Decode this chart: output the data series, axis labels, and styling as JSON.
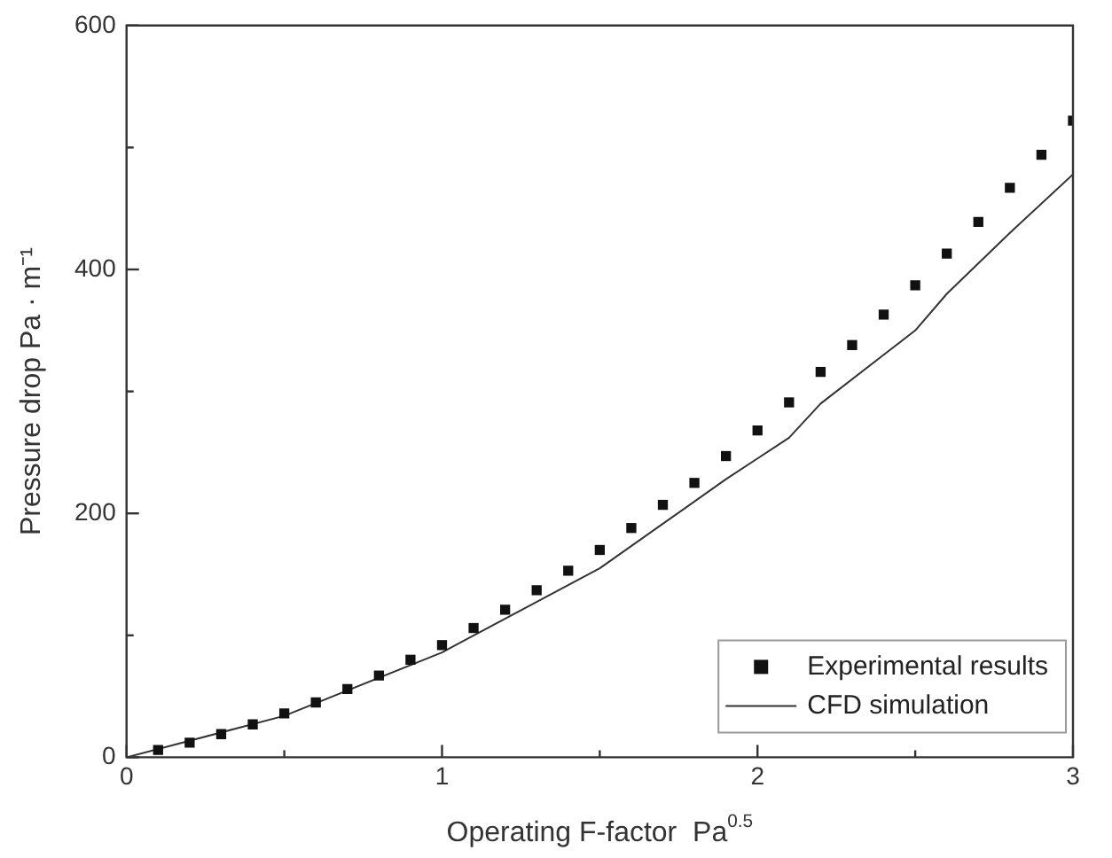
{
  "chart_data": {
    "type": "scatter",
    "xlabel": "Operating F-factor  Pa$^{0.5}$",
    "ylabel": "Pressure drop Pa · m⁻¹",
    "xlim": [
      0,
      3
    ],
    "ylim": [
      0,
      600
    ],
    "xticks": [
      0,
      {
        "value": 0.5,
        "label": null
      },
      1,
      {
        "value": 1.5,
        "label": null
      },
      2,
      {
        "value": 2.5,
        "label": null
      },
      3
    ],
    "yticks": [
      0,
      {
        "value": 100,
        "label": null
      },
      200,
      {
        "value": 300,
        "label": null
      },
      400,
      {
        "value": 500,
        "label": null
      },
      600
    ],
    "grid": false,
    "legend": "bottom right",
    "marker": "square",
    "series": [
      {
        "name": "Experimental results",
        "type": "scatter",
        "color": "#111111",
        "x": [
          0.1,
          0.2,
          0.3,
          0.4,
          0.5,
          0.6,
          0.7,
          0.8,
          0.9,
          1.0,
          1.1,
          1.2,
          1.3,
          1.4,
          1.5,
          1.6,
          1.7,
          1.8,
          1.9,
          2.0,
          2.1,
          2.2,
          2.3,
          2.4,
          2.5,
          2.6,
          2.7,
          2.8,
          2.9,
          3.0
        ],
        "values": [
          6,
          12,
          19,
          27,
          36,
          45,
          56,
          67,
          80,
          92,
          106,
          121,
          137,
          153,
          170,
          188,
          207,
          225,
          247,
          268,
          291,
          316,
          338,
          363,
          387,
          413,
          439,
          467,
          494,
          522
        ]
      },
      {
        "name": "CFD simulation",
        "type": "line",
        "color": "#333333",
        "marker": "none",
        "line_style": "solid",
        "x": [
          0,
          0.5,
          1.0,
          1.5,
          1.9,
          2.0,
          2.1,
          2.2,
          2.4,
          2.5,
          2.6,
          2.8,
          3.0
        ],
        "values": [
          0,
          34,
          86,
          155,
          228,
          245,
          262,
          290,
          330,
          350,
          380,
          430,
          478
        ]
      }
    ]
  }
}
